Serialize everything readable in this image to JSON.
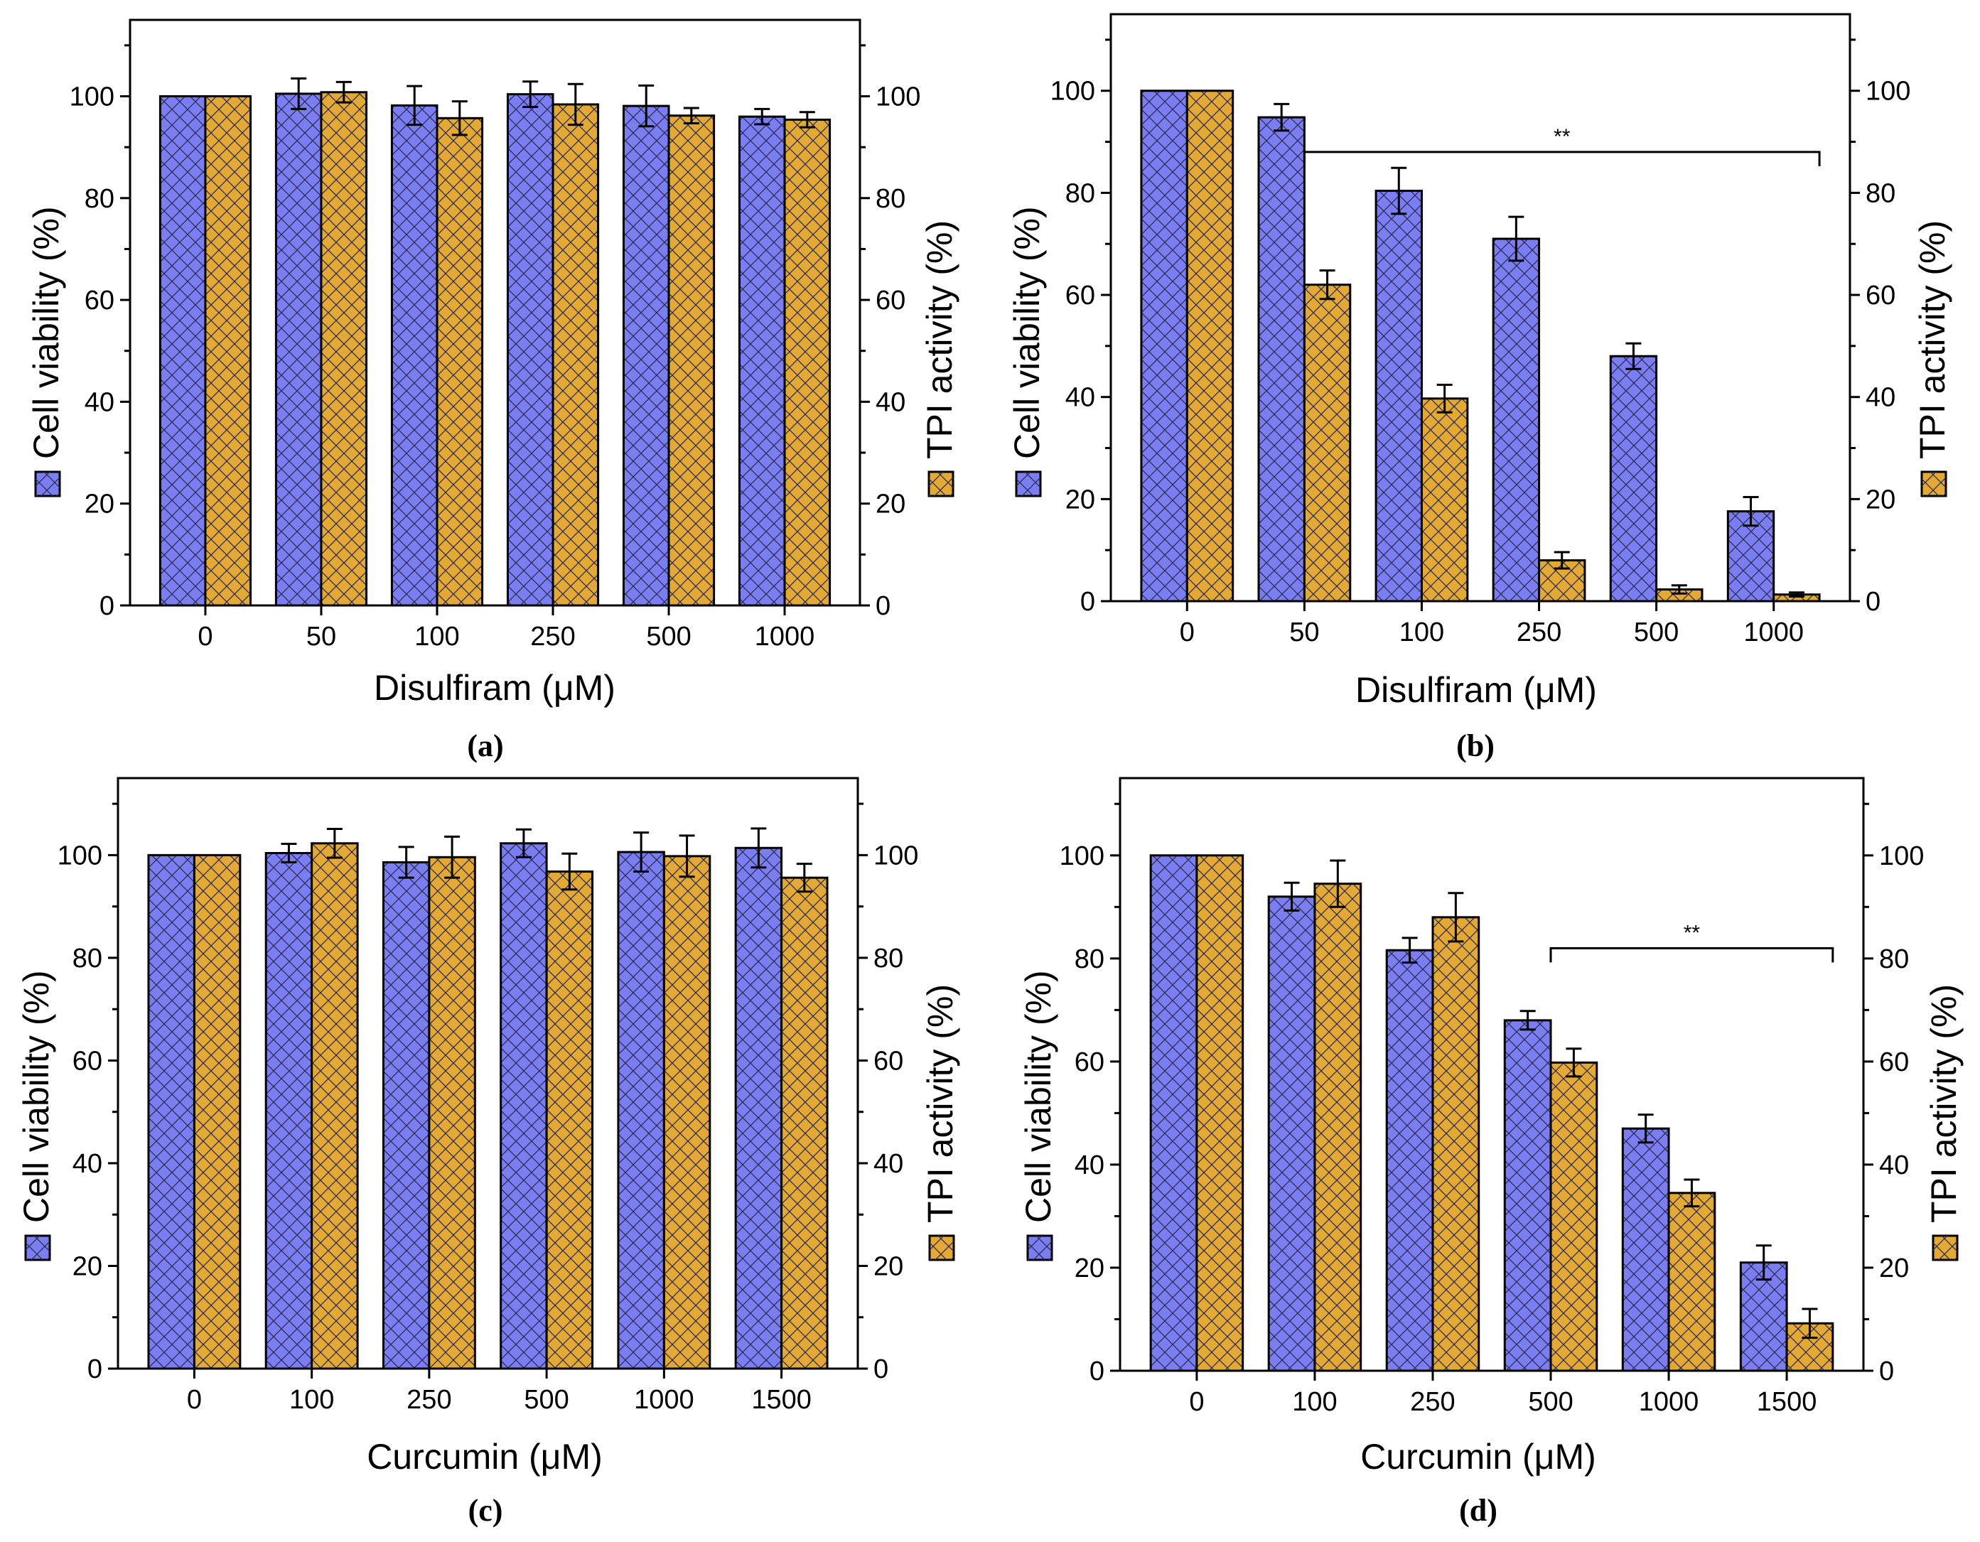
{
  "colors": {
    "series1": "#7b7ef0",
    "series2": "#e4a935",
    "hatch": "#2b2b55",
    "axis": "#000000"
  },
  "chart_data": [
    {
      "type": "bar",
      "panel": "(a)",
      "xlabel": "Disulfiram (μM)",
      "ylabel_left": "Cell viability (%)",
      "ylabel_right": "TPI activity (%)",
      "categories": [
        "0",
        "50",
        "100",
        "250",
        "500",
        "1000"
      ],
      "ylim": [
        0,
        115
      ],
      "yticks": [
        0,
        20,
        40,
        60,
        80,
        100
      ],
      "series": [
        {
          "name": "Cell viability (%)",
          "values": [
            100,
            100.5,
            98.2,
            100.4,
            98.1,
            96.0
          ],
          "errors": [
            0,
            3.0,
            3.8,
            2.5,
            4.0,
            1.5
          ]
        },
        {
          "name": "TPI activity (%)",
          "values": [
            100,
            100.8,
            95.7,
            98.4,
            96.2,
            95.4
          ],
          "errors": [
            0,
            2.0,
            3.3,
            4.0,
            1.5,
            1.5
          ]
        }
      ],
      "significance": null
    },
    {
      "type": "bar",
      "panel": "(b)",
      "xlabel": "Disulfiram (μM)",
      "ylabel_left": "Cell viability (%)",
      "ylabel_right": "TPI activity (%)",
      "categories": [
        "0",
        "50",
        "100",
        "250",
        "500",
        "1000"
      ],
      "ylim": [
        0,
        115
      ],
      "yticks": [
        0,
        20,
        40,
        60,
        80,
        100
      ],
      "series": [
        {
          "name": "Cell viability (%)",
          "values": [
            100,
            94.8,
            80.4,
            71.0,
            48.0,
            17.6
          ],
          "errors": [
            0,
            2.6,
            4.5,
            4.3,
            2.5,
            2.8
          ]
        },
        {
          "name": "TPI activity (%)",
          "values": [
            100,
            62.0,
            39.7,
            8.0,
            2.3,
            1.3
          ],
          "errors": [
            0,
            2.8,
            2.7,
            1.6,
            0.8,
            0.4
          ]
        }
      ],
      "significance": {
        "label": "**",
        "from": 1,
        "to": 5,
        "y": 88
      }
    },
    {
      "type": "bar",
      "panel": "(c)",
      "xlabel": "Curcumin (μM)",
      "ylabel_left": "Cell viability (%)",
      "ylabel_right": "TPI activity (%)",
      "categories": [
        "0",
        "100",
        "250",
        "500",
        "1000",
        "1500"
      ],
      "ylim": [
        0,
        115
      ],
      "yticks": [
        0,
        20,
        40,
        60,
        80,
        100
      ],
      "series": [
        {
          "name": "Cell viability (%)",
          "values": [
            100,
            100.4,
            98.6,
            102.3,
            100.6,
            101.4
          ],
          "errors": [
            0,
            1.8,
            3.0,
            2.7,
            3.8,
            3.8
          ]
        },
        {
          "name": "TPI activity (%)",
          "values": [
            100,
            102.3,
            99.6,
            96.8,
            99.8,
            95.6
          ],
          "errors": [
            0,
            2.8,
            4.0,
            3.5,
            4.0,
            2.7
          ]
        }
      ],
      "significance": null
    },
    {
      "type": "bar",
      "panel": "(d)",
      "xlabel": "Curcumin (μM)",
      "ylabel_left": "Cell viability (%)",
      "ylabel_right": "TPI activity (%)",
      "categories": [
        "0",
        "100",
        "250",
        "500",
        "1000",
        "1500"
      ],
      "ylim": [
        0,
        115
      ],
      "yticks": [
        0,
        20,
        40,
        60,
        80,
        100
      ],
      "series": [
        {
          "name": "Cell viability (%)",
          "values": [
            100,
            92.0,
            81.6,
            68.0,
            47.0,
            21.0
          ],
          "errors": [
            0,
            2.7,
            2.4,
            1.8,
            2.7,
            3.3
          ]
        },
        {
          "name": "TPI activity (%)",
          "values": [
            100,
            94.5,
            88.0,
            59.8,
            34.5,
            9.2
          ],
          "errors": [
            0,
            4.5,
            4.7,
            2.7,
            2.6,
            2.8
          ]
        }
      ],
      "significance": {
        "label": "**",
        "from": 3,
        "to": 5,
        "y": 82
      }
    }
  ]
}
